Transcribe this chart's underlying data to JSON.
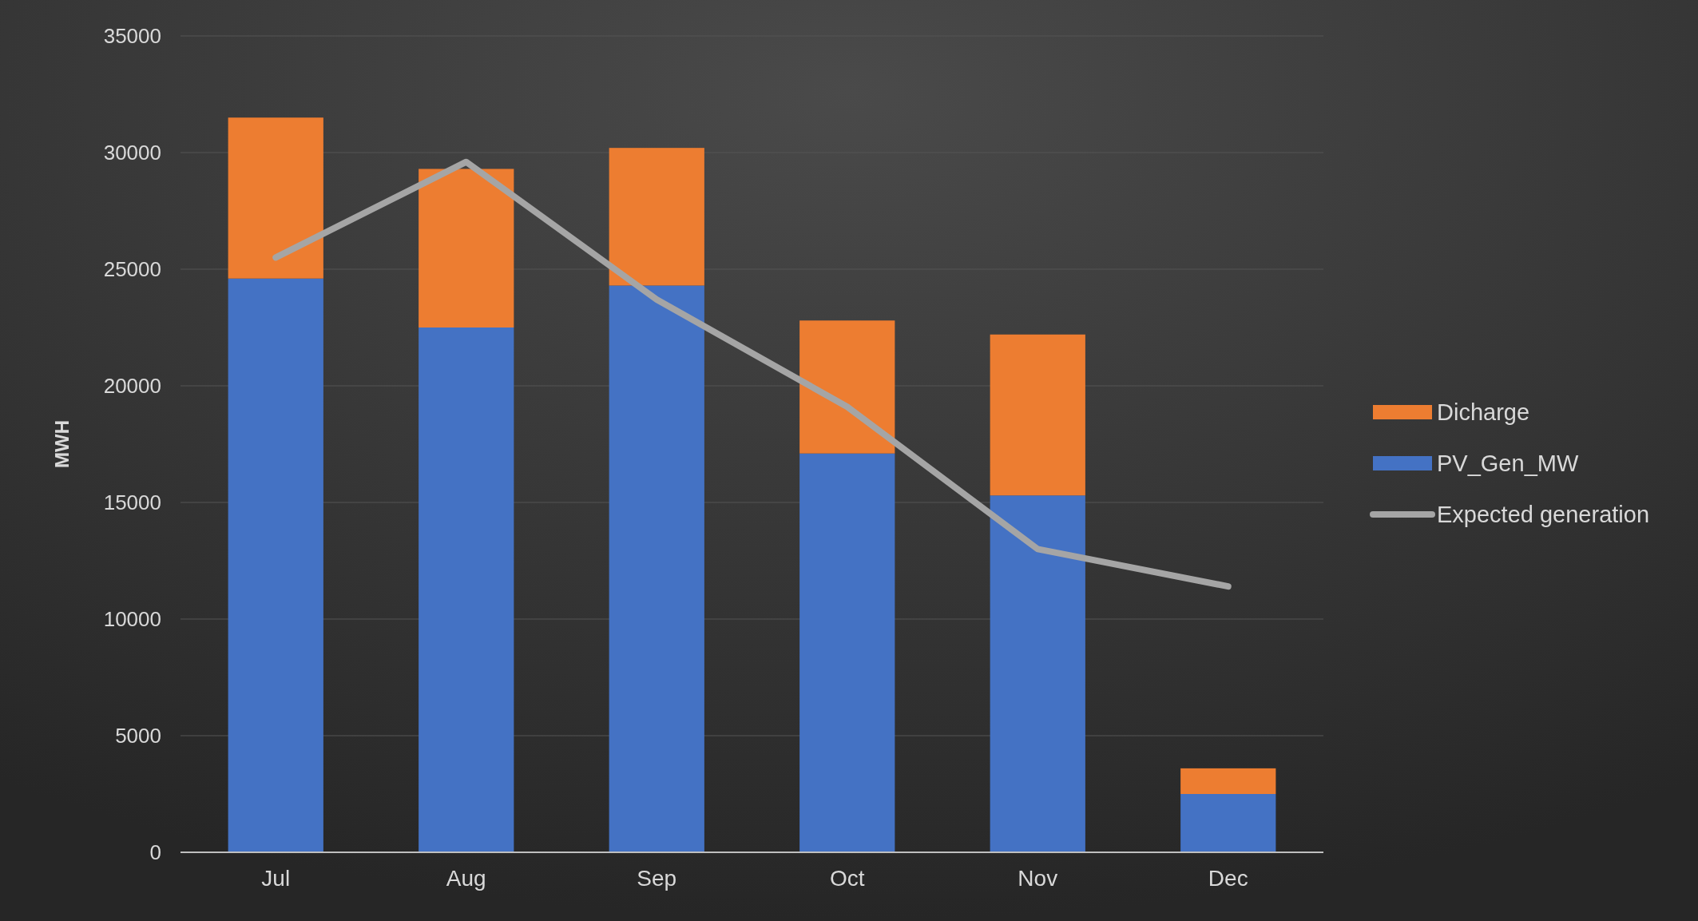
{
  "chart_data": {
    "type": "bar",
    "ylabel": "MWH",
    "categories": [
      "Jul",
      "Aug",
      "Sep",
      "Oct",
      "Nov",
      "Dec"
    ],
    "stacked": true,
    "series": [
      {
        "name": "PV_Gen_MW",
        "color": "#4472c4",
        "values": [
          24600,
          22500,
          24300,
          17100,
          15300,
          2500
        ]
      },
      {
        "name": "Dicharge",
        "color": "#ed7d31",
        "values": [
          6900,
          6800,
          5900,
          5700,
          6900,
          1100
        ]
      },
      {
        "name": "Expected generation",
        "type": "line",
        "color": "#a5a5a5",
        "values": [
          25500,
          29600,
          23700,
          19100,
          13000,
          11400
        ]
      }
    ],
    "ylim": [
      0,
      35000
    ],
    "yticks": [
      0,
      5000,
      10000,
      15000,
      20000,
      25000,
      30000,
      35000
    ],
    "grid": "y",
    "legend": "right"
  }
}
